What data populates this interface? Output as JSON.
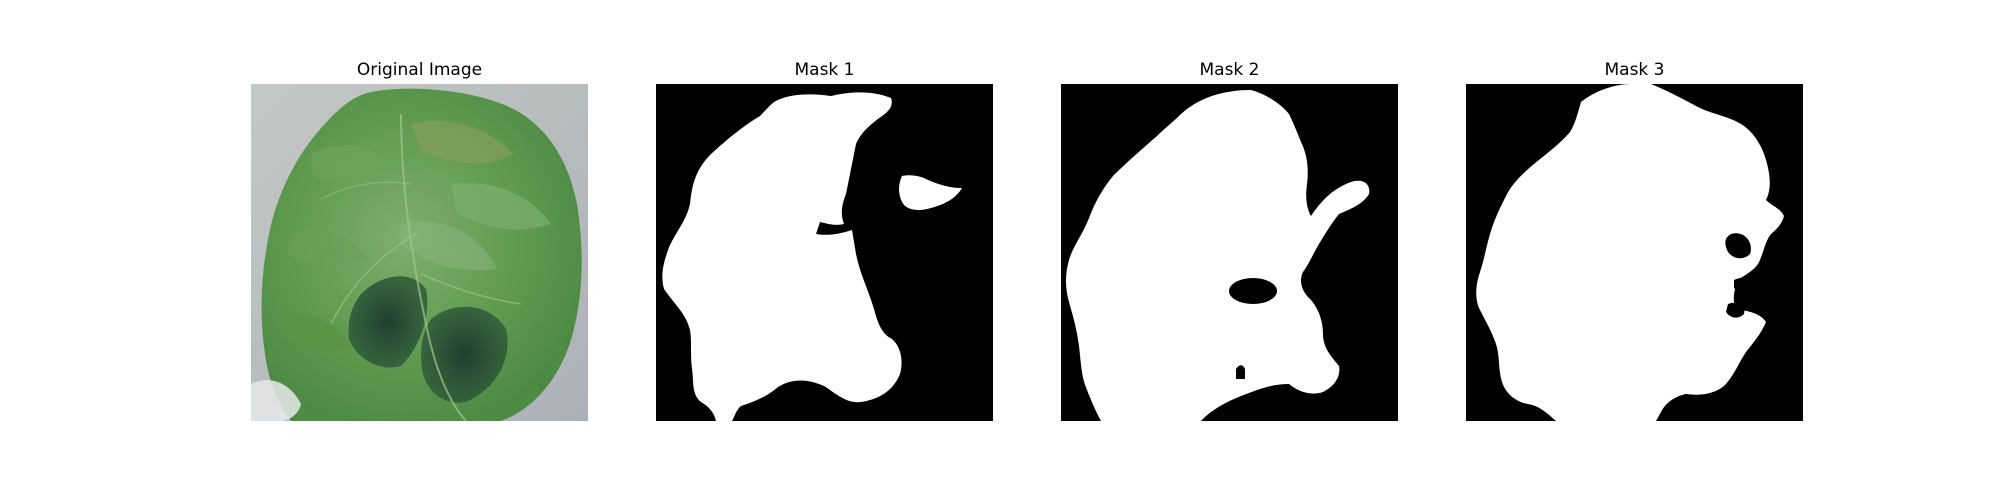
{
  "figure": {
    "panels": [
      {
        "title": "Original Image"
      },
      {
        "title": "Mask 1"
      },
      {
        "title": "Mask 2"
      },
      {
        "title": "Mask 3"
      }
    ]
  },
  "colors": {
    "mask_background": "#000000",
    "mask_foreground": "#ffffff",
    "image_backdrop": "#b9bfc0",
    "leaf_base": "#5f9a4f",
    "leaf_dark": "#2f5a3a",
    "leaf_light": "#8fc07a"
  }
}
